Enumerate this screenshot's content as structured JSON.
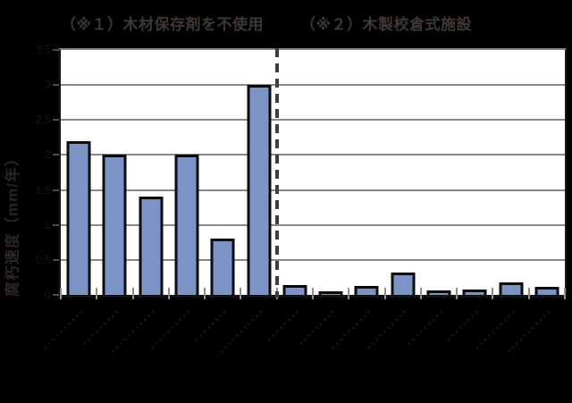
{
  "figure": {
    "background_color": "#000000",
    "plot_background_color": "#ffffff"
  },
  "chart_data": {
    "type": "bar",
    "title": "",
    "ylabel": "腐朽速度（mm/年）",
    "xlabel": "",
    "ylim": [
      0,
      3.5
    ],
    "yticks": [
      "0",
      "0.5",
      "1",
      "1.5",
      "2",
      "2.5",
      "3",
      "3.5"
    ],
    "grid": true,
    "legend_position": "none",
    "bar_color": "#7b94c5",
    "bar_border_color": "#0c0c0c",
    "gridline_color": "#8a8a8a",
    "divider": {
      "style": "dashed-vertical-line",
      "color": "#3f3f3f",
      "after_category_index": 6
    },
    "groups": [
      {
        "label": "（※１）木材保存剤を不使用",
        "values": [
          2.2,
          2.0,
          1.4,
          2.0,
          0.8,
          3.0
        ]
      },
      {
        "label": "（※２）木製校倉式施設",
        "values": [
          0.14,
          0.05,
          0.13,
          0.32,
          0.07,
          0.08,
          0.18,
          0.12
        ]
      }
    ],
    "x_tick_labels": {
      "count": 14,
      "legible": false,
      "note": "rotated ~45° category labels rendered too dark against black background to read"
    }
  },
  "smudges": {
    "glyph": "▪",
    "lengths": [
      10,
      9,
      11,
      10,
      8,
      11,
      8,
      9,
      10,
      10,
      9,
      8,
      10,
      11
    ]
  }
}
